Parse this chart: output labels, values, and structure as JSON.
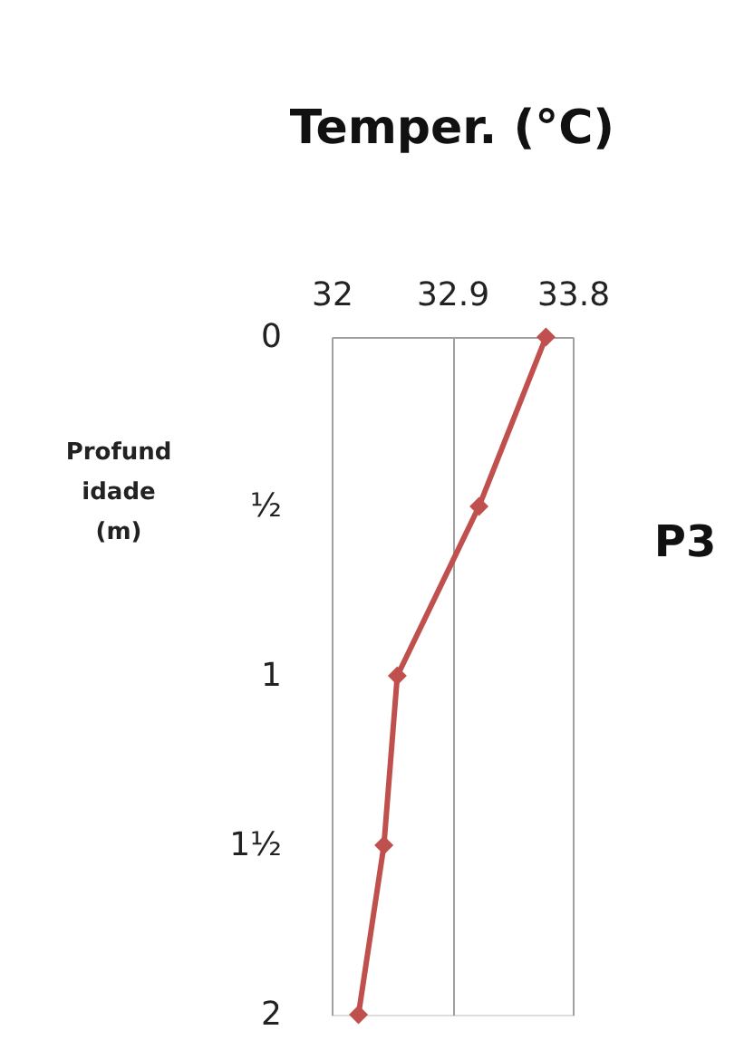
{
  "chart_data": {
    "type": "line",
    "title": "Temper. (°C)",
    "ylabel": "Profund idade (m)",
    "series": [
      {
        "color": "#c0504d",
        "x": [
          33.6,
          33.1,
          32.49,
          32.39,
          32.2
        ],
        "values": [
          0,
          0.5,
          1,
          1.5,
          2
        ]
      }
    ],
    "xlim": [
      32,
      33.8
    ],
    "xticks": [
      32,
      32.9,
      33.8
    ],
    "ylim": [
      2,
      0
    ],
    "yticks": [
      0,
      {
        "value": 0.5,
        "label": "½"
      },
      1,
      {
        "value": 1.5,
        "label": "1½"
      },
      2
    ],
    "grid": "x",
    "marker": "diamond",
    "line_style": "solid",
    "annotations": [
      "P3"
    ]
  }
}
